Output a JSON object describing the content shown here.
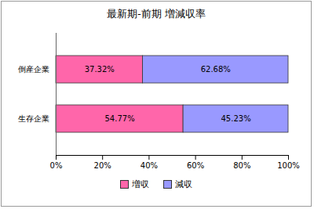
{
  "chart_data": {
    "type": "bar",
    "title": "最新期-前期 増減収率",
    "orientation": "horizontal",
    "stacked": true,
    "data_labels": true,
    "grid": false,
    "legend": "bottom",
    "categories": [
      "倒産企業",
      "生存企業"
    ],
    "series": [
      {
        "name": "増収",
        "color": "#ff66aa",
        "values": [
          37.32,
          54.77
        ],
        "value_labels": [
          "37.32%",
          "54.77%"
        ]
      },
      {
        "name": "減収",
        "color": "#9999ff",
        "values": [
          62.68,
          45.23
        ],
        "value_labels": [
          "62.68%",
          "45.23%"
        ]
      }
    ],
    "xlim": [
      0,
      100
    ],
    "xticks": [
      {
        "value": 0,
        "label": "0%"
      },
      {
        "value": 20,
        "label": "20%"
      },
      {
        "value": 40,
        "label": "40%"
      },
      {
        "value": 60,
        "label": "60%"
      },
      {
        "value": 80,
        "label": "80%"
      },
      {
        "value": 100,
        "label": "100%"
      }
    ]
  }
}
